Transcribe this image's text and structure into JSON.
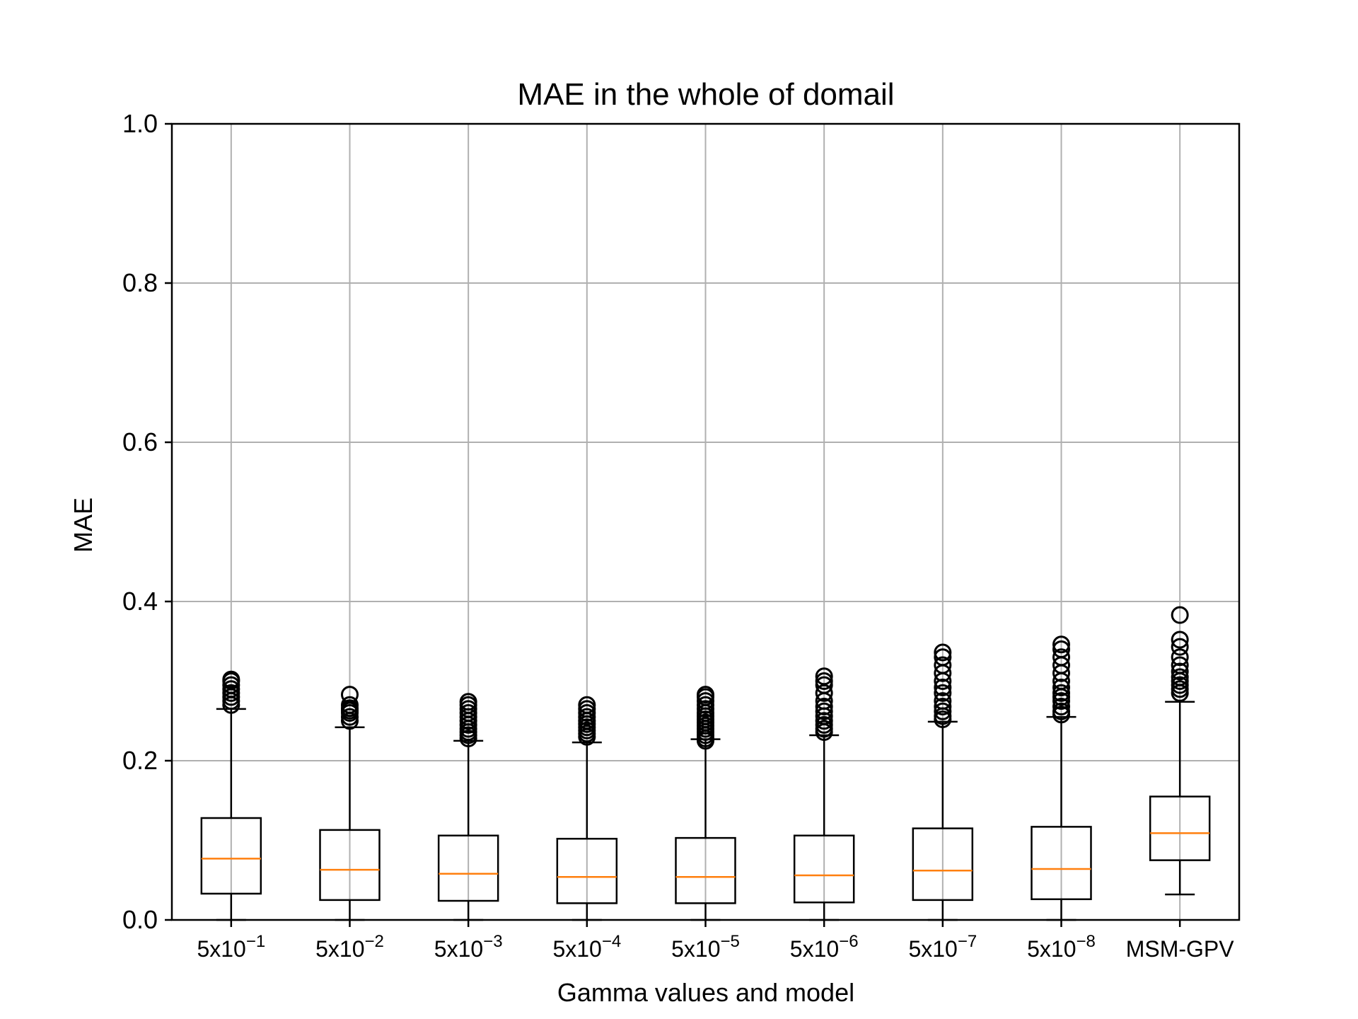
{
  "chart_data": {
    "type": "boxplot",
    "title": "MAE in the whole of domail",
    "xlabel": "Gamma values and model",
    "ylabel": "MAE",
    "ylim": [
      0.0,
      1.0
    ],
    "yticks": [
      "0.0",
      "0.2",
      "0.4",
      "0.6",
      "0.8",
      "1.0"
    ],
    "ytick_values": [
      0.0,
      0.2,
      0.4,
      0.6,
      0.8,
      1.0
    ],
    "grid": true,
    "colors": {
      "box": "#000000",
      "median": "#ff7f0e",
      "grid": "#b0b0b0"
    },
    "categories": [
      {
        "base": "5x10",
        "exp": "−1"
      },
      {
        "base": "5x10",
        "exp": "−2"
      },
      {
        "base": "5x10",
        "exp": "−3"
      },
      {
        "base": "5x10",
        "exp": "−4"
      },
      {
        "base": "5x10",
        "exp": "−5"
      },
      {
        "base": "5x10",
        "exp": "−6"
      },
      {
        "base": "5x10",
        "exp": "−7"
      },
      {
        "base": "5x10",
        "exp": "−8"
      },
      {
        "base": "MSM-GPV",
        "exp": ""
      }
    ],
    "boxes": [
      {
        "whislo": 0.0,
        "q1": 0.033,
        "med": 0.077,
        "q3": 0.128,
        "whishi": 0.265,
        "fliers": [
          0.27,
          0.275,
          0.28,
          0.285,
          0.29,
          0.295,
          0.3,
          0.302
        ]
      },
      {
        "whislo": 0.0,
        "q1": 0.025,
        "med": 0.063,
        "q3": 0.113,
        "whishi": 0.242,
        "fliers": [
          0.25,
          0.255,
          0.26,
          0.263,
          0.266,
          0.27,
          0.283
        ]
      },
      {
        "whislo": 0.0,
        "q1": 0.024,
        "med": 0.058,
        "q3": 0.106,
        "whishi": 0.225,
        "fliers": [
          0.228,
          0.232,
          0.236,
          0.24,
          0.245,
          0.25,
          0.255,
          0.26,
          0.265,
          0.27,
          0.274
        ]
      },
      {
        "whislo": 0.0,
        "q1": 0.021,
        "med": 0.054,
        "q3": 0.102,
        "whishi": 0.223,
        "fliers": [
          0.23,
          0.234,
          0.238,
          0.242,
          0.246,
          0.25,
          0.255,
          0.26,
          0.265,
          0.27
        ]
      },
      {
        "whislo": 0.0,
        "q1": 0.021,
        "med": 0.054,
        "q3": 0.103,
        "whishi": 0.227,
        "fliers": [
          0.225,
          0.228,
          0.232,
          0.236,
          0.24,
          0.244,
          0.248,
          0.252,
          0.256,
          0.26,
          0.265,
          0.27,
          0.275,
          0.28,
          0.283
        ]
      },
      {
        "whislo": 0.0,
        "q1": 0.022,
        "med": 0.056,
        "q3": 0.106,
        "whishi": 0.232,
        "fliers": [
          0.236,
          0.24,
          0.245,
          0.25,
          0.256,
          0.262,
          0.268,
          0.275,
          0.285,
          0.295,
          0.3,
          0.306
        ]
      },
      {
        "whislo": 0.0,
        "q1": 0.025,
        "med": 0.062,
        "q3": 0.115,
        "whishi": 0.249,
        "fliers": [
          0.252,
          0.256,
          0.262,
          0.268,
          0.275,
          0.285,
          0.292,
          0.3,
          0.31,
          0.32,
          0.33,
          0.336
        ]
      },
      {
        "whislo": 0.0,
        "q1": 0.026,
        "med": 0.064,
        "q3": 0.117,
        "whishi": 0.255,
        "fliers": [
          0.258,
          0.262,
          0.268,
          0.275,
          0.28,
          0.285,
          0.292,
          0.3,
          0.31,
          0.32,
          0.33,
          0.34,
          0.346
        ]
      },
      {
        "whislo": 0.032,
        "q1": 0.075,
        "med": 0.109,
        "q3": 0.155,
        "whishi": 0.274,
        "fliers": [
          0.285,
          0.29,
          0.295,
          0.3,
          0.305,
          0.312,
          0.32,
          0.33,
          0.343,
          0.352,
          0.383
        ]
      }
    ]
  }
}
